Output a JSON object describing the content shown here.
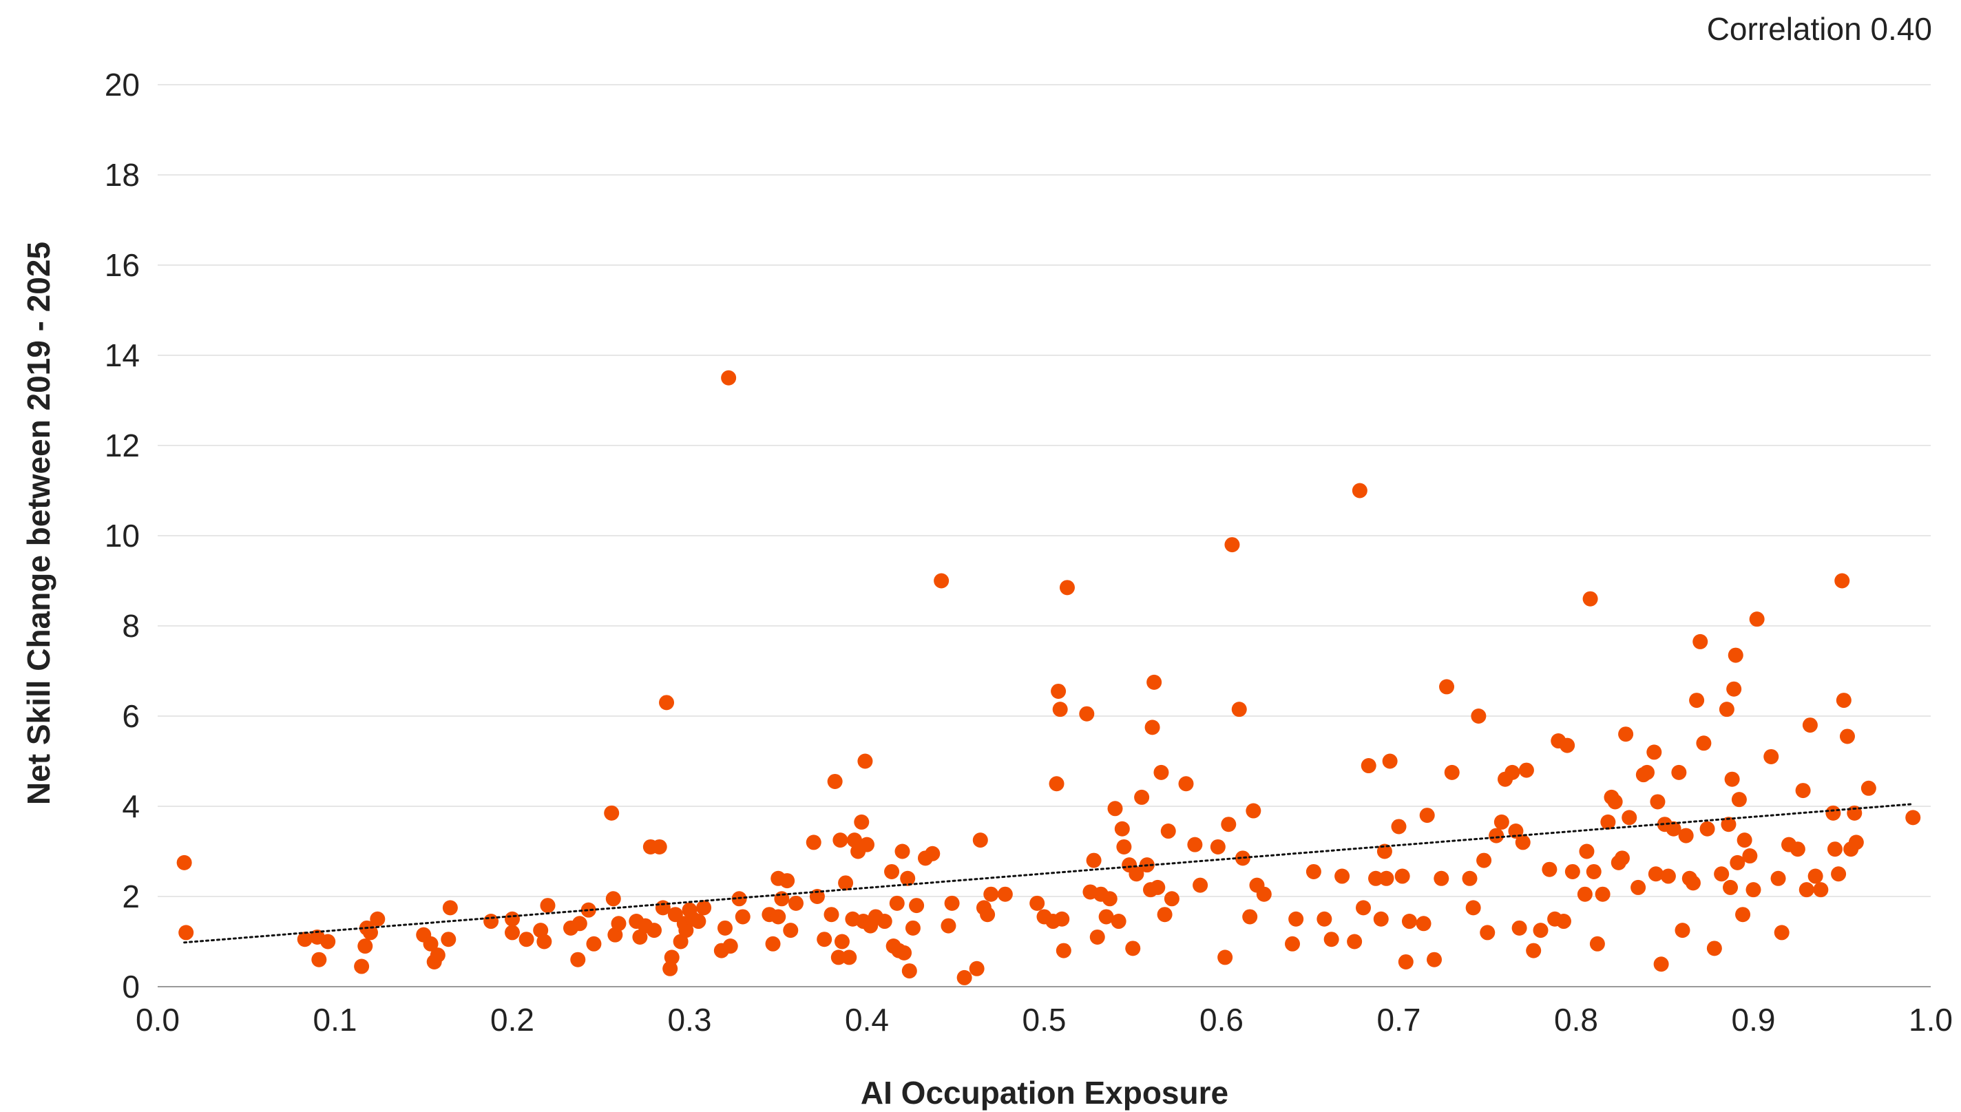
{
  "chart_data": {
    "type": "scatter",
    "annotation": "Correlation 0.40",
    "xlabel": "AI Occupation Exposure",
    "ylabel": "Net Skill Change between 2019 - 2025",
    "xlim": [
      0.0,
      1.0
    ],
    "ylim": [
      0,
      20
    ],
    "x_ticks": [
      "0.0",
      "0.1",
      "0.2",
      "0.3",
      "0.4",
      "0.5",
      "0.6",
      "0.7",
      "0.8",
      "0.9",
      "1.0"
    ],
    "y_ticks": [
      "0",
      "2",
      "4",
      "6",
      "8",
      "10",
      "12",
      "14",
      "16",
      "18",
      "20"
    ],
    "grid": "horizontal",
    "colors": {
      "points": "#f24f00",
      "trendline": "#111111",
      "grid": "#e6e6e6",
      "axis": "#999999"
    },
    "trendline": {
      "style": "dotted",
      "x": [
        0.015,
        0.99
      ],
      "y": [
        0.98,
        4.05
      ]
    },
    "points": [
      [
        0.015,
        2.75
      ],
      [
        0.016,
        1.2
      ],
      [
        0.083,
        1.05
      ],
      [
        0.09,
        1.1
      ],
      [
        0.091,
        0.6
      ],
      [
        0.096,
        1.0
      ],
      [
        0.115,
        0.45
      ],
      [
        0.117,
        0.9
      ],
      [
        0.118,
        1.3
      ],
      [
        0.12,
        1.2
      ],
      [
        0.124,
        1.5
      ],
      [
        0.15,
        1.15
      ],
      [
        0.154,
        0.95
      ],
      [
        0.156,
        0.55
      ],
      [
        0.158,
        0.7
      ],
      [
        0.164,
        1.05
      ],
      [
        0.165,
        1.75
      ],
      [
        0.188,
        1.45
      ],
      [
        0.2,
        1.2
      ],
      [
        0.2,
        1.5
      ],
      [
        0.208,
        1.05
      ],
      [
        0.216,
        1.25
      ],
      [
        0.218,
        1.0
      ],
      [
        0.22,
        1.8
      ],
      [
        0.233,
        1.3
      ],
      [
        0.237,
        0.6
      ],
      [
        0.238,
        1.4
      ],
      [
        0.243,
        1.7
      ],
      [
        0.246,
        0.95
      ],
      [
        0.256,
        3.85
      ],
      [
        0.257,
        1.95
      ],
      [
        0.258,
        1.15
      ],
      [
        0.26,
        1.4
      ],
      [
        0.27,
        1.45
      ],
      [
        0.272,
        1.1
      ],
      [
        0.275,
        1.35
      ],
      [
        0.278,
        3.1
      ],
      [
        0.28,
        1.25
      ],
      [
        0.283,
        3.1
      ],
      [
        0.285,
        1.75
      ],
      [
        0.287,
        6.3
      ],
      [
        0.289,
        0.4
      ],
      [
        0.29,
        0.65
      ],
      [
        0.292,
        1.6
      ],
      [
        0.295,
        1.0
      ],
      [
        0.297,
        1.4
      ],
      [
        0.298,
        1.25
      ],
      [
        0.3,
        1.7
      ],
      [
        0.302,
        1.5
      ],
      [
        0.305,
        1.45
      ],
      [
        0.308,
        1.75
      ],
      [
        0.318,
        0.8
      ],
      [
        0.32,
        1.3
      ],
      [
        0.322,
        13.5
      ],
      [
        0.323,
        0.9
      ],
      [
        0.328,
        1.95
      ],
      [
        0.33,
        1.55
      ],
      [
        0.345,
        1.6
      ],
      [
        0.347,
        0.95
      ],
      [
        0.35,
        2.4
      ],
      [
        0.35,
        1.55
      ],
      [
        0.352,
        1.95
      ],
      [
        0.355,
        2.35
      ],
      [
        0.357,
        1.25
      ],
      [
        0.36,
        1.85
      ],
      [
        0.37,
        3.2
      ],
      [
        0.372,
        2.0
      ],
      [
        0.376,
        1.05
      ],
      [
        0.38,
        1.6
      ],
      [
        0.382,
        4.55
      ],
      [
        0.384,
        0.65
      ],
      [
        0.385,
        3.25
      ],
      [
        0.386,
        1.0
      ],
      [
        0.388,
        2.3
      ],
      [
        0.39,
        0.65
      ],
      [
        0.392,
        1.5
      ],
      [
        0.393,
        3.25
      ],
      [
        0.395,
        3.0
      ],
      [
        0.397,
        3.65
      ],
      [
        0.398,
        1.45
      ],
      [
        0.399,
        5.0
      ],
      [
        0.4,
        3.15
      ],
      [
        0.402,
        1.35
      ],
      [
        0.405,
        1.55
      ],
      [
        0.41,
        1.45
      ],
      [
        0.414,
        2.55
      ],
      [
        0.415,
        0.9
      ],
      [
        0.417,
        1.85
      ],
      [
        0.418,
        0.8
      ],
      [
        0.42,
        3.0
      ],
      [
        0.421,
        0.75
      ],
      [
        0.423,
        2.4
      ],
      [
        0.424,
        0.35
      ],
      [
        0.426,
        1.3
      ],
      [
        0.428,
        1.8
      ],
      [
        0.433,
        2.85
      ],
      [
        0.437,
        2.95
      ],
      [
        0.442,
        9.0
      ],
      [
        0.446,
        1.35
      ],
      [
        0.448,
        1.85
      ],
      [
        0.455,
        0.2
      ],
      [
        0.462,
        0.4
      ],
      [
        0.464,
        3.25
      ],
      [
        0.466,
        1.75
      ],
      [
        0.468,
        1.6
      ],
      [
        0.47,
        2.05
      ],
      [
        0.478,
        2.05
      ],
      [
        0.496,
        1.85
      ],
      [
        0.5,
        1.55
      ],
      [
        0.505,
        1.45
      ],
      [
        0.507,
        4.5
      ],
      [
        0.508,
        6.55
      ],
      [
        0.509,
        6.15
      ],
      [
        0.51,
        1.5
      ],
      [
        0.511,
        0.8
      ],
      [
        0.513,
        8.85
      ],
      [
        0.524,
        6.05
      ],
      [
        0.526,
        2.1
      ],
      [
        0.528,
        2.8
      ],
      [
        0.53,
        1.1
      ],
      [
        0.532,
        2.05
      ],
      [
        0.535,
        1.55
      ],
      [
        0.537,
        1.95
      ],
      [
        0.54,
        3.95
      ],
      [
        0.542,
        1.45
      ],
      [
        0.544,
        3.5
      ],
      [
        0.545,
        3.1
      ],
      [
        0.548,
        2.7
      ],
      [
        0.55,
        0.85
      ],
      [
        0.552,
        2.5
      ],
      [
        0.555,
        4.2
      ],
      [
        0.558,
        2.7
      ],
      [
        0.56,
        2.15
      ],
      [
        0.561,
        5.75
      ],
      [
        0.562,
        6.75
      ],
      [
        0.564,
        2.2
      ],
      [
        0.566,
        4.75
      ],
      [
        0.568,
        1.6
      ],
      [
        0.57,
        3.45
      ],
      [
        0.572,
        1.95
      ],
      [
        0.58,
        4.5
      ],
      [
        0.585,
        3.15
      ],
      [
        0.588,
        2.25
      ],
      [
        0.598,
        3.1
      ],
      [
        0.602,
        0.65
      ],
      [
        0.604,
        3.6
      ],
      [
        0.606,
        9.8
      ],
      [
        0.61,
        6.15
      ],
      [
        0.612,
        2.85
      ],
      [
        0.616,
        1.55
      ],
      [
        0.618,
        3.9
      ],
      [
        0.62,
        2.25
      ],
      [
        0.624,
        2.05
      ],
      [
        0.64,
        0.95
      ],
      [
        0.642,
        1.5
      ],
      [
        0.652,
        2.55
      ],
      [
        0.658,
        1.5
      ],
      [
        0.662,
        1.05
      ],
      [
        0.668,
        2.45
      ],
      [
        0.675,
        1.0
      ],
      [
        0.678,
        11.0
      ],
      [
        0.68,
        1.75
      ],
      [
        0.683,
        4.9
      ],
      [
        0.687,
        2.4
      ],
      [
        0.69,
        1.5
      ],
      [
        0.692,
        3.0
      ],
      [
        0.693,
        2.4
      ],
      [
        0.695,
        5.0
      ],
      [
        0.7,
        3.55
      ],
      [
        0.702,
        2.45
      ],
      [
        0.704,
        0.55
      ],
      [
        0.706,
        1.45
      ],
      [
        0.714,
        1.4
      ],
      [
        0.716,
        3.8
      ],
      [
        0.72,
        0.6
      ],
      [
        0.724,
        2.4
      ],
      [
        0.727,
        6.65
      ],
      [
        0.73,
        4.75
      ],
      [
        0.74,
        2.4
      ],
      [
        0.742,
        1.75
      ],
      [
        0.745,
        6.0
      ],
      [
        0.748,
        2.8
      ],
      [
        0.75,
        1.2
      ],
      [
        0.755,
        3.35
      ],
      [
        0.758,
        3.65
      ],
      [
        0.76,
        4.6
      ],
      [
        0.764,
        4.75
      ],
      [
        0.766,
        3.45
      ],
      [
        0.768,
        1.3
      ],
      [
        0.77,
        3.2
      ],
      [
        0.772,
        4.8
      ],
      [
        0.776,
        0.8
      ],
      [
        0.78,
        1.25
      ],
      [
        0.785,
        2.6
      ],
      [
        0.788,
        1.5
      ],
      [
        0.79,
        5.45
      ],
      [
        0.793,
        1.45
      ],
      [
        0.795,
        5.35
      ],
      [
        0.798,
        2.55
      ],
      [
        0.805,
        2.05
      ],
      [
        0.806,
        3.0
      ],
      [
        0.808,
        8.6
      ],
      [
        0.81,
        2.55
      ],
      [
        0.812,
        0.95
      ],
      [
        0.815,
        2.05
      ],
      [
        0.818,
        3.65
      ],
      [
        0.82,
        4.2
      ],
      [
        0.822,
        4.1
      ],
      [
        0.824,
        2.75
      ],
      [
        0.826,
        2.85
      ],
      [
        0.828,
        5.6
      ],
      [
        0.83,
        3.75
      ],
      [
        0.835,
        2.2
      ],
      [
        0.838,
        4.7
      ],
      [
        0.84,
        4.75
      ],
      [
        0.844,
        5.2
      ],
      [
        0.845,
        2.5
      ],
      [
        0.846,
        4.1
      ],
      [
        0.848,
        0.5
      ],
      [
        0.85,
        3.6
      ],
      [
        0.852,
        2.45
      ],
      [
        0.855,
        3.5
      ],
      [
        0.858,
        4.75
      ],
      [
        0.86,
        1.25
      ],
      [
        0.862,
        3.35
      ],
      [
        0.864,
        2.4
      ],
      [
        0.866,
        2.3
      ],
      [
        0.868,
        6.35
      ],
      [
        0.87,
        7.65
      ],
      [
        0.872,
        5.4
      ],
      [
        0.874,
        3.5
      ],
      [
        0.878,
        0.85
      ],
      [
        0.882,
        2.5
      ],
      [
        0.885,
        6.15
      ],
      [
        0.886,
        3.6
      ],
      [
        0.887,
        2.2
      ],
      [
        0.888,
        4.6
      ],
      [
        0.889,
        6.6
      ],
      [
        0.89,
        7.35
      ],
      [
        0.891,
        2.75
      ],
      [
        0.892,
        4.15
      ],
      [
        0.894,
        1.6
      ],
      [
        0.895,
        3.25
      ],
      [
        0.898,
        2.9
      ],
      [
        0.9,
        2.15
      ],
      [
        0.902,
        8.15
      ],
      [
        0.91,
        5.1
      ],
      [
        0.914,
        2.4
      ],
      [
        0.916,
        1.2
      ],
      [
        0.92,
        3.15
      ],
      [
        0.925,
        3.05
      ],
      [
        0.928,
        4.35
      ],
      [
        0.93,
        2.15
      ],
      [
        0.932,
        5.8
      ],
      [
        0.935,
        2.45
      ],
      [
        0.938,
        2.15
      ],
      [
        0.945,
        3.85
      ],
      [
        0.946,
        3.05
      ],
      [
        0.948,
        2.5
      ],
      [
        0.95,
        9.0
      ],
      [
        0.951,
        6.35
      ],
      [
        0.953,
        5.55
      ],
      [
        0.955,
        3.05
      ],
      [
        0.957,
        3.85
      ],
      [
        0.958,
        3.2
      ],
      [
        0.965,
        4.4
      ],
      [
        0.99,
        3.75
      ]
    ]
  }
}
